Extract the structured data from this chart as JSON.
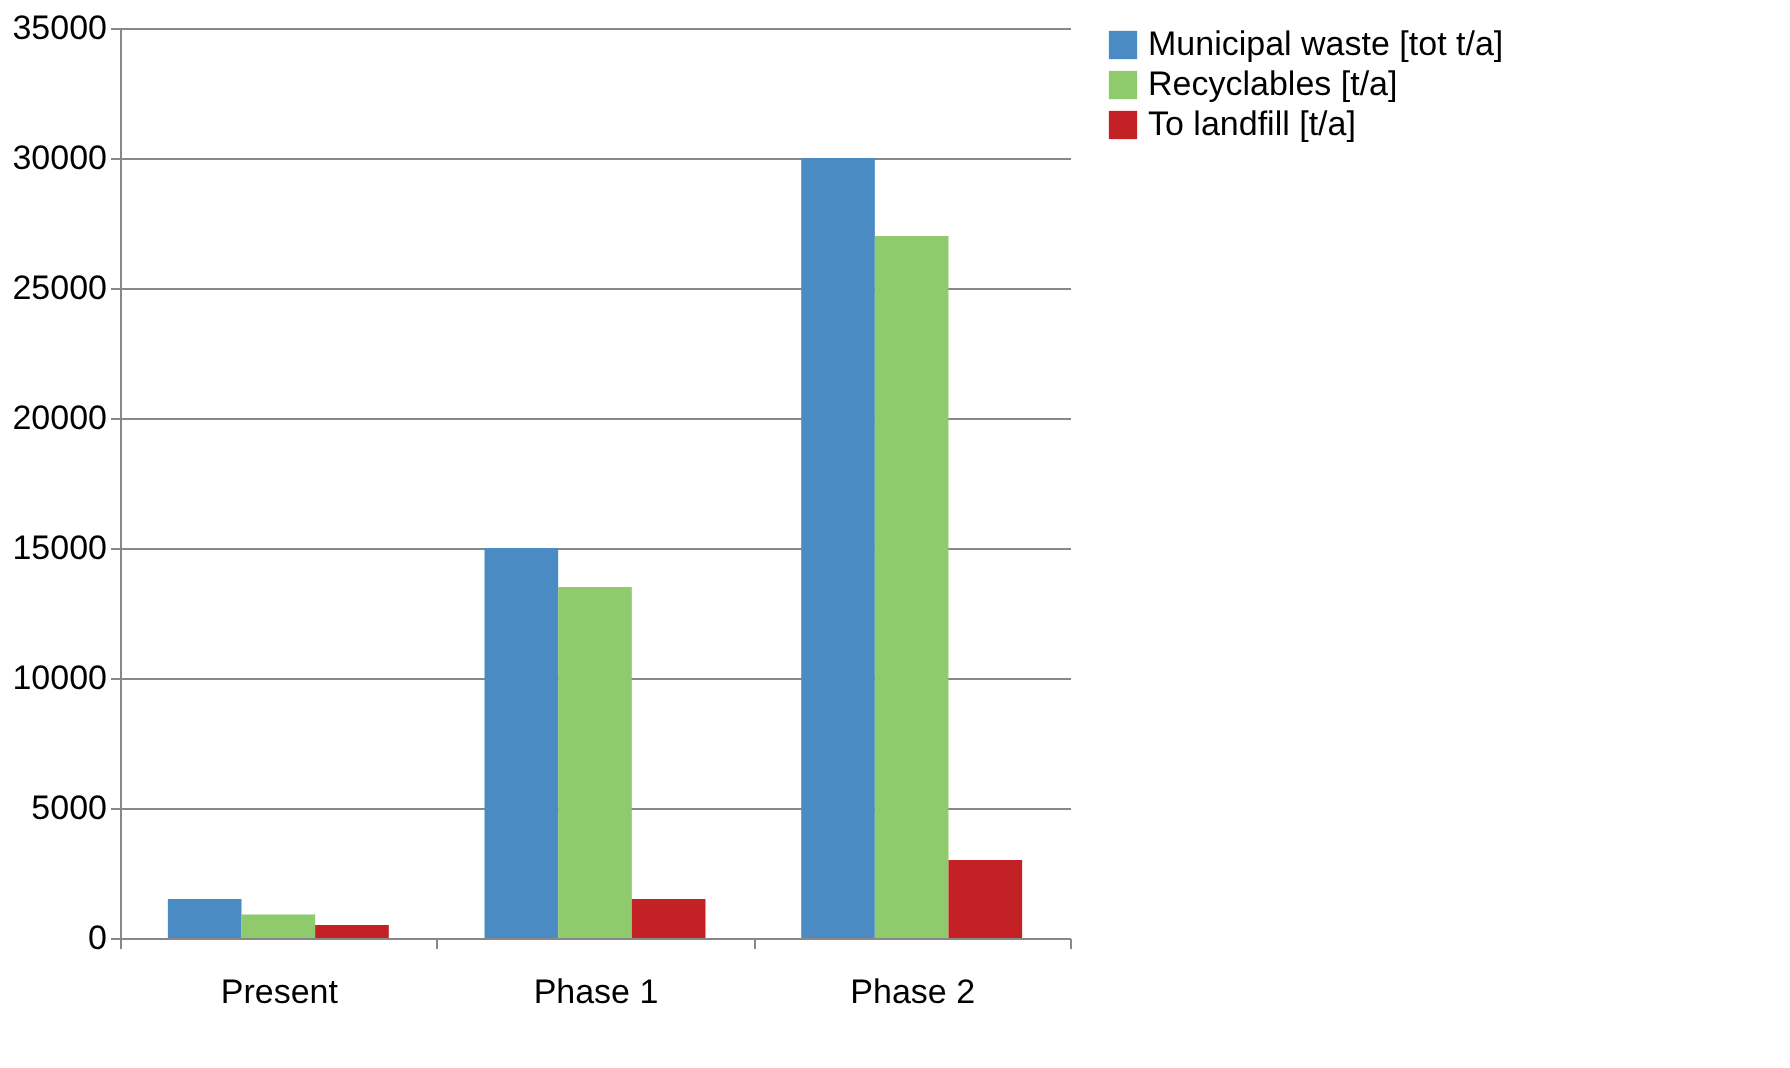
{
  "chart_data": {
    "type": "bar",
    "categories": [
      "Present",
      "Phase 1",
      "Phase 2"
    ],
    "series": [
      {
        "name": "Municipal waste [tot t/a]",
        "color": "#4a8bc4",
        "values": [
          1500,
          15000,
          30000
        ]
      },
      {
        "name": "Recyclables [t/a]",
        "color": "#8fca6c",
        "values": [
          900,
          13500,
          27000
        ]
      },
      {
        "name": "To landfill [t/a]",
        "color": "#c42127",
        "values": [
          500,
          1500,
          3000
        ]
      }
    ],
    "ylim": [
      0,
      35000
    ],
    "yticks": [
      0,
      5000,
      10000,
      15000,
      20000,
      25000,
      30000,
      35000
    ],
    "grid": "y",
    "legend": "right"
  }
}
